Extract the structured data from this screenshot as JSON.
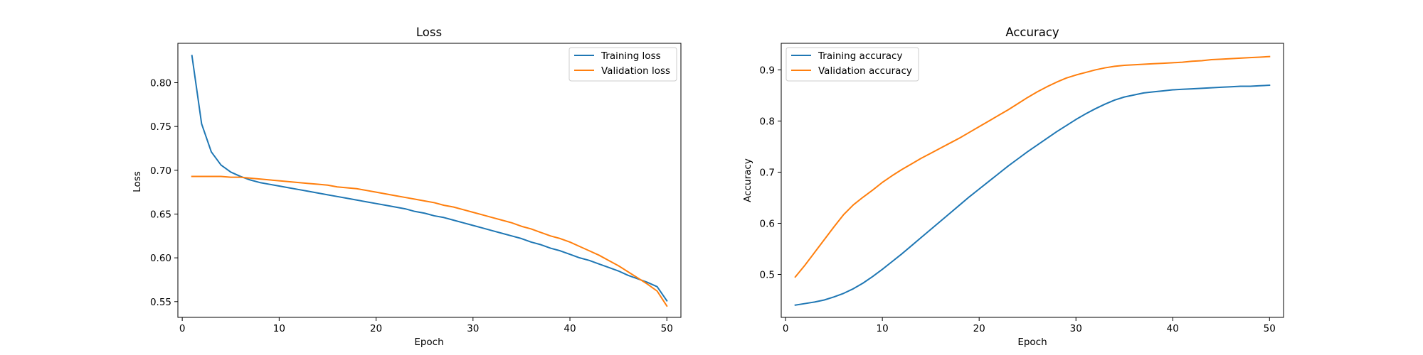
{
  "colors": {
    "training": "#1f77b4",
    "validation": "#ff7f0e",
    "axes": "#000000",
    "background": "#ffffff",
    "legend_border": "#cccccc"
  },
  "chart_data": [
    {
      "type": "line",
      "title": "Loss",
      "xlabel": "Epoch",
      "ylabel": "Loss",
      "xlim": [
        -0.45,
        51.45
      ],
      "ylim": [
        0.532,
        0.845
      ],
      "xticks": [
        0,
        10,
        20,
        30,
        40,
        50
      ],
      "yticks": [
        0.55,
        0.6,
        0.65,
        0.7,
        0.75,
        0.8
      ],
      "ytick_labels": [
        "0.55",
        "0.60",
        "0.65",
        "0.70",
        "0.75",
        "0.80"
      ],
      "grid": false,
      "legend_position": "upper right",
      "x": [
        1,
        2,
        3,
        4,
        5,
        6,
        7,
        8,
        9,
        10,
        11,
        12,
        13,
        14,
        15,
        16,
        17,
        18,
        19,
        20,
        21,
        22,
        23,
        24,
        25,
        26,
        27,
        28,
        29,
        30,
        31,
        32,
        33,
        34,
        35,
        36,
        37,
        38,
        39,
        40,
        41,
        42,
        43,
        44,
        45,
        46,
        47,
        48,
        49,
        50
      ],
      "series": [
        {
          "name": "Training loss",
          "color_key": "training",
          "values": [
            0.831,
            0.753,
            0.721,
            0.706,
            0.698,
            0.693,
            0.689,
            0.686,
            0.684,
            0.682,
            0.68,
            0.678,
            0.676,
            0.674,
            0.672,
            0.67,
            0.668,
            0.666,
            0.664,
            0.662,
            0.66,
            0.658,
            0.656,
            0.653,
            0.651,
            0.648,
            0.646,
            0.643,
            0.64,
            0.637,
            0.634,
            0.631,
            0.628,
            0.625,
            0.622,
            0.618,
            0.615,
            0.611,
            0.608,
            0.604,
            0.6,
            0.597,
            0.593,
            0.589,
            0.585,
            0.58,
            0.576,
            0.572,
            0.567,
            0.551
          ]
        },
        {
          "name": "Validation loss",
          "color_key": "validation",
          "values": [
            0.693,
            0.693,
            0.693,
            0.693,
            0.692,
            0.692,
            0.691,
            0.69,
            0.689,
            0.688,
            0.687,
            0.686,
            0.685,
            0.684,
            0.683,
            0.681,
            0.68,
            0.679,
            0.677,
            0.675,
            0.673,
            0.671,
            0.669,
            0.667,
            0.665,
            0.663,
            0.66,
            0.658,
            0.655,
            0.652,
            0.649,
            0.646,
            0.643,
            0.64,
            0.636,
            0.633,
            0.629,
            0.625,
            0.622,
            0.618,
            0.613,
            0.608,
            0.603,
            0.597,
            0.591,
            0.584,
            0.577,
            0.57,
            0.562,
            0.545
          ]
        }
      ]
    },
    {
      "type": "line",
      "title": "Accuracy",
      "xlabel": "Epoch",
      "ylabel": "Accuracy",
      "xlim": [
        -0.45,
        51.45
      ],
      "ylim": [
        0.416,
        0.952
      ],
      "xticks": [
        0,
        10,
        20,
        30,
        40,
        50
      ],
      "yticks": [
        0.5,
        0.6,
        0.7,
        0.8,
        0.9
      ],
      "ytick_labels": [
        "0.5",
        "0.6",
        "0.7",
        "0.8",
        "0.9"
      ],
      "grid": false,
      "legend_position": "upper left",
      "x": [
        1,
        2,
        3,
        4,
        5,
        6,
        7,
        8,
        9,
        10,
        11,
        12,
        13,
        14,
        15,
        16,
        17,
        18,
        19,
        20,
        21,
        22,
        23,
        24,
        25,
        26,
        27,
        28,
        29,
        30,
        31,
        32,
        33,
        34,
        35,
        36,
        37,
        38,
        39,
        40,
        41,
        42,
        43,
        44,
        45,
        46,
        47,
        48,
        49,
        50
      ],
      "series": [
        {
          "name": "Training accuracy",
          "color_key": "training",
          "values": [
            0.44,
            0.443,
            0.446,
            0.45,
            0.456,
            0.463,
            0.472,
            0.483,
            0.496,
            0.51,
            0.525,
            0.54,
            0.556,
            0.572,
            0.588,
            0.604,
            0.62,
            0.636,
            0.652,
            0.667,
            0.682,
            0.697,
            0.712,
            0.726,
            0.74,
            0.753,
            0.766,
            0.779,
            0.791,
            0.803,
            0.814,
            0.824,
            0.833,
            0.841,
            0.847,
            0.851,
            0.855,
            0.857,
            0.859,
            0.861,
            0.862,
            0.863,
            0.864,
            0.865,
            0.866,
            0.867,
            0.868,
            0.868,
            0.869,
            0.87
          ]
        },
        {
          "name": "Validation accuracy",
          "color_key": "validation",
          "values": [
            0.495,
            0.518,
            0.543,
            0.568,
            0.593,
            0.617,
            0.636,
            0.651,
            0.665,
            0.68,
            0.693,
            0.705,
            0.716,
            0.727,
            0.737,
            0.747,
            0.757,
            0.767,
            0.778,
            0.789,
            0.8,
            0.811,
            0.822,
            0.834,
            0.846,
            0.857,
            0.867,
            0.876,
            0.884,
            0.89,
            0.895,
            0.9,
            0.904,
            0.907,
            0.909,
            0.91,
            0.911,
            0.912,
            0.913,
            0.914,
            0.915,
            0.917,
            0.918,
            0.92,
            0.921,
            0.922,
            0.923,
            0.924,
            0.925,
            0.926
          ]
        }
      ]
    }
  ]
}
